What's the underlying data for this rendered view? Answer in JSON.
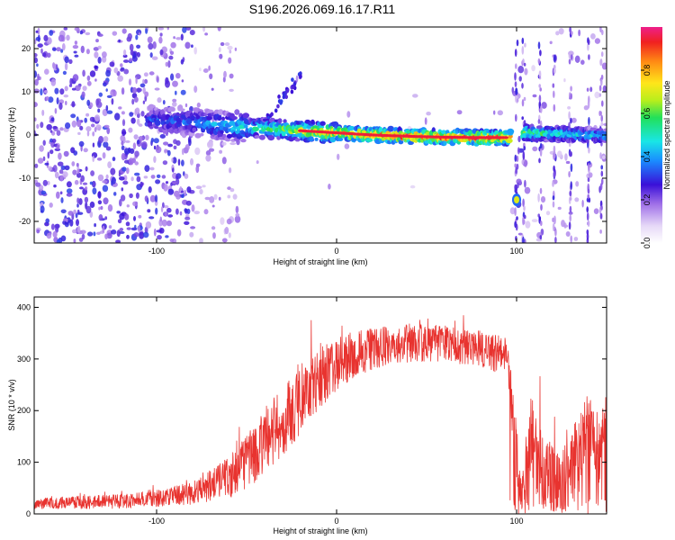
{
  "title": "S196.2026.069.16.17.R11",
  "colors": {
    "snr_line": "#e8332f",
    "ridge_core": "#ee1f3a",
    "heat_low": "#b48ee8",
    "heat_mid": "#5a18d6"
  },
  "chart_data": [
    {
      "type": "heatmap",
      "name": "spectrogram",
      "xlabel": "Height of straight line (km)",
      "ylabel": "Frequency (Hz)",
      "xlim": [
        -168,
        150
      ],
      "ylim": [
        -25,
        25
      ],
      "xticks": [
        -100,
        0,
        100
      ],
      "xtick_labels": [
        "-100",
        "0",
        "100"
      ],
      "yticks": [
        -20,
        -10,
        0,
        10,
        20
      ],
      "ytick_labels": [
        "-20",
        "-10",
        "0",
        "10",
        "20"
      ],
      "colorbar": {
        "label": "Normalized spectral amplitude",
        "range": [
          0,
          1
        ],
        "ticks": [
          0.0,
          0.2,
          0.4,
          0.6,
          0.8
        ],
        "tick_labels": [
          "0.0",
          "0.2",
          "0.4",
          "0.6",
          "0.8"
        ]
      },
      "ridge": {
        "x": [
          -100,
          -80,
          -60,
          -40,
          -20,
          0,
          20,
          40,
          60,
          80,
          97,
          105,
          120,
          140,
          150
        ],
        "y": [
          3.5,
          3.0,
          2.0,
          1.5,
          1.0,
          0.5,
          0.0,
          -0.3,
          -0.5,
          -0.6,
          -0.6,
          0.5,
          0.3,
          0.0,
          -0.2
        ],
        "amplitude": [
          0.35,
          0.4,
          0.5,
          0.6,
          0.75,
          0.9,
          0.95,
          1.0,
          1.0,
          1.0,
          0.95,
          0.7,
          0.6,
          0.5,
          0.5
        ]
      },
      "gap_start": 97,
      "gap_end": 103,
      "isolated_feature": {
        "x": 100,
        "y": -15,
        "amplitude": 0.7
      }
    },
    {
      "type": "line",
      "name": "snr",
      "xlabel": "Height of straight line (km)",
      "ylabel": "SNR (10 * v/v)",
      "xlim": [
        -168,
        150
      ],
      "ylim": [
        0,
        420
      ],
      "xticks": [
        -100,
        0,
        100
      ],
      "xtick_labels": [
        "-100",
        "0",
        "100"
      ],
      "yticks": [
        0,
        100,
        200,
        300,
        400
      ],
      "ytick_labels": [
        "0",
        "100",
        "200",
        "300",
        "400"
      ],
      "envelope": {
        "x": [
          -168,
          -150,
          -120,
          -100,
          -80,
          -70,
          -60,
          -50,
          -40,
          -30,
          -20,
          -10,
          0,
          10,
          20,
          40,
          60,
          80,
          95,
          100,
          103,
          108,
          115,
          125,
          135,
          140,
          145,
          150
        ],
        "y": [
          20,
          22,
          24,
          30,
          40,
          55,
          70,
          100,
          140,
          180,
          220,
          260,
          290,
          310,
          320,
          330,
          330,
          320,
          300,
          120,
          40,
          150,
          80,
          60,
          120,
          200,
          100,
          180
        ]
      },
      "noise_amplitude": [
        10,
        12,
        14,
        16,
        22,
        30,
        40,
        55,
        65,
        70,
        70,
        60,
        50,
        45,
        40,
        38,
        36,
        35,
        40,
        60,
        40,
        90,
        70,
        60,
        80,
        60,
        70,
        60
      ]
    }
  ]
}
